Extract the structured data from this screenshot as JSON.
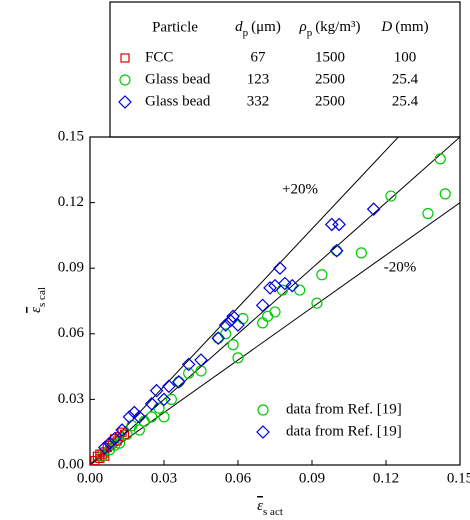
{
  "chart_data": {
    "type": "scatter",
    "table": {
      "headers": [
        "Particle",
        {
          "symbol": "d",
          "subscript": "p",
          "unit": "(μm)"
        },
        {
          "symbol": "ρ",
          "subscript": "p",
          "unit": "(kg/m³)"
        },
        {
          "symbol": "D",
          "unit": "(mm)"
        }
      ],
      "rows": [
        [
          67,
          1500,
          100
        ],
        [
          123,
          2500,
          25.4
        ],
        [
          332,
          2500,
          25.4
        ]
      ]
    },
    "xlabel": {
      "symbol": "ε",
      "subscript": "s act"
    },
    "ylabel": {
      "symbol": "ε",
      "subscript": "s cal"
    },
    "xlim": [
      0,
      0.15
    ],
    "ylim": [
      0,
      0.15
    ],
    "xticks": [
      {
        "value": 0,
        "label": "0.00"
      },
      0.03,
      0.06,
      0.09,
      0.12,
      0.15
    ],
    "yticks": [
      {
        "value": 0,
        "label": "0.00"
      },
      0.03,
      0.06,
      0.09,
      0.12,
      0.15
    ],
    "reference_lines": [
      {
        "slope": 1
      },
      {
        "slope": 1.2,
        "label": "+20%"
      },
      {
        "slope": 0.8,
        "label": "-20%"
      }
    ],
    "series": [
      {
        "name": "FCC",
        "color": "#e00000",
        "marker": "square",
        "x": [
          0.002,
          0.003,
          0.004,
          0.005,
          0.006,
          0.007,
          0.008,
          0.009,
          0.01,
          0.011,
          0.012,
          0.013,
          0.014,
          0.004,
          0.006
        ],
        "values": [
          0.002,
          0.004,
          0.003,
          0.005,
          0.006,
          0.008,
          0.009,
          0.01,
          0.012,
          0.011,
          0.013,
          0.015,
          0.014,
          0.005,
          0.004
        ]
      },
      {
        "name": "Glass bead",
        "color": "#00cc00",
        "marker": "circle",
        "x": [
          0.005,
          0.008,
          0.01,
          0.012,
          0.015,
          0.017,
          0.02,
          0.022,
          0.025,
          0.028,
          0.03,
          0.033,
          0.036,
          0.04,
          0.045,
          0.052,
          0.055,
          0.058,
          0.06,
          0.062,
          0.07,
          0.072,
          0.075,
          0.078,
          0.085,
          0.092,
          0.094,
          0.1,
          0.11,
          0.122,
          0.137,
          0.142,
          0.144
        ],
        "values": [
          0.004,
          0.007,
          0.009,
          0.01,
          0.014,
          0.018,
          0.016,
          0.02,
          0.022,
          0.026,
          0.022,
          0.03,
          0.038,
          0.042,
          0.043,
          0.058,
          0.06,
          0.055,
          0.049,
          0.067,
          0.065,
          0.068,
          0.07,
          0.08,
          0.08,
          0.074,
          0.087,
          0.098,
          0.097,
          0.123,
          0.115,
          0.14,
          0.124
        ]
      },
      {
        "name": "Glass bead",
        "color": "#0000e0",
        "marker": "diamond",
        "x": [
          0.006,
          0.008,
          0.01,
          0.013,
          0.016,
          0.018,
          0.02,
          0.025,
          0.027,
          0.03,
          0.032,
          0.036,
          0.04,
          0.045,
          0.052,
          0.055,
          0.057,
          0.058,
          0.06,
          0.07,
          0.073,
          0.075,
          0.077,
          0.079,
          0.082,
          0.098,
          0.1,
          0.101,
          0.115
        ],
        "values": [
          0.008,
          0.01,
          0.012,
          0.016,
          0.022,
          0.024,
          0.022,
          0.028,
          0.034,
          0.03,
          0.036,
          0.038,
          0.046,
          0.048,
          0.058,
          0.064,
          0.066,
          0.068,
          0.064,
          0.073,
          0.081,
          0.082,
          0.09,
          0.083,
          0.082,
          0.11,
          0.098,
          0.11,
          0.117
        ]
      }
    ],
    "notes": [
      {
        "label": "data from Ref. [19]",
        "marker": "circle",
        "color": "#00cc00"
      },
      {
        "label": "data from Ref. [19]",
        "marker": "diamond",
        "color": "#0000e0"
      }
    ]
  }
}
